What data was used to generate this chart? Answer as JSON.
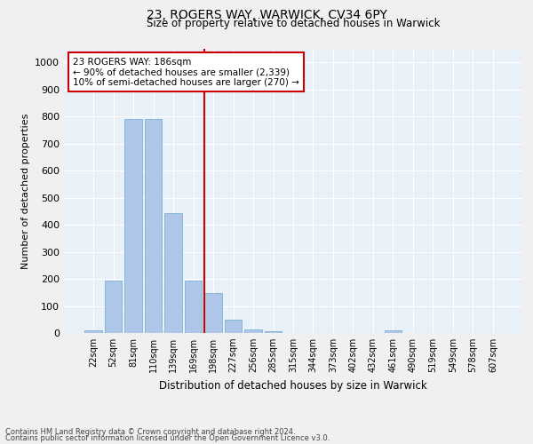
{
  "title1": "23, ROGERS WAY, WARWICK, CV34 6PY",
  "title2": "Size of property relative to detached houses in Warwick",
  "xlabel": "Distribution of detached houses by size in Warwick",
  "ylabel": "Number of detached properties",
  "categories": [
    "22sqm",
    "52sqm",
    "81sqm",
    "110sqm",
    "139sqm",
    "169sqm",
    "198sqm",
    "227sqm",
    "256sqm",
    "285sqm",
    "315sqm",
    "344sqm",
    "373sqm",
    "402sqm",
    "432sqm",
    "461sqm",
    "490sqm",
    "519sqm",
    "549sqm",
    "578sqm",
    "607sqm"
  ],
  "values": [
    10,
    193,
    790,
    790,
    443,
    195,
    148,
    48,
    12,
    8,
    0,
    0,
    0,
    0,
    0,
    10,
    0,
    0,
    0,
    0,
    0
  ],
  "bar_color": "#aec6e8",
  "bar_edge_color": "#6aaad4",
  "vline_index": 6,
  "vline_color": "#cc0000",
  "annotation_text": "23 ROGERS WAY: 186sqm\n← 90% of detached houses are smaller (2,339)\n10% of semi-detached houses are larger (270) →",
  "annotation_box_color": "#ffffff",
  "annotation_box_edge": "#cc0000",
  "ylim": [
    0,
    1050
  ],
  "yticks": [
    0,
    100,
    200,
    300,
    400,
    500,
    600,
    700,
    800,
    900,
    1000
  ],
  "bg_color": "#e8f0f8",
  "grid_color": "#ffffff",
  "title1_fontsize": 10,
  "title2_fontsize": 8.5,
  "footer_line1": "Contains HM Land Registry data © Crown copyright and database right 2024.",
  "footer_line2": "Contains public sector information licensed under the Open Government Licence v3.0."
}
